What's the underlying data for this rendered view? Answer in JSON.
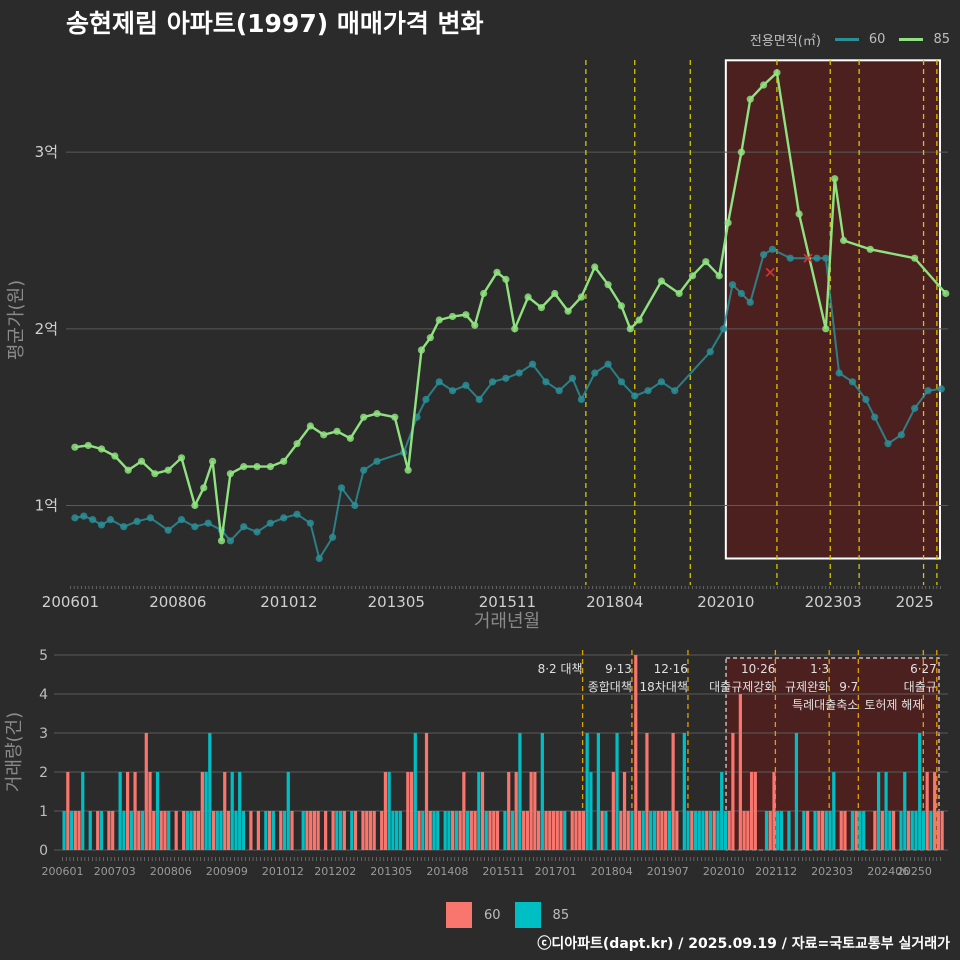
{
  "title": "송현제림 아파트(1997) 매매가격 변화",
  "credit": "ⓒ디아파트(dapt.kr) / 2025.09.19 / 자료=국토교통부 실거래가",
  "legend_top": {
    "title": "전용면적(㎡)",
    "items": [
      {
        "label": "60",
        "color": "#2a8f96"
      },
      {
        "label": "85",
        "color": "#8fe27f"
      }
    ]
  },
  "legend_bottom": {
    "items": [
      {
        "label": "60",
        "color": "#f8766d"
      },
      {
        "label": "85",
        "color": "#00bfc4"
      }
    ]
  },
  "chart_data": [
    {
      "type": "line",
      "xlabel": "거래년월",
      "ylabel": "평균가(원)",
      "x_ticks": [
        "200601",
        "200806",
        "201012",
        "201305",
        "201511",
        "201804",
        "202010",
        "202303",
        "2025"
      ],
      "y_ticks": [
        {
          "value": 1,
          "label": "1억"
        },
        {
          "value": 2,
          "label": "2억"
        },
        {
          "value": 3,
          "label": "3억"
        }
      ],
      "ylim": [
        0.55,
        3.55
      ],
      "xlim": [
        2005.9,
        2025.75
      ],
      "grid": true,
      "highlight": {
        "x_range": [
          2020.75,
          2025.75
        ],
        "y_range": [
          0.7,
          3.52
        ]
      },
      "vlines": [
        2017.6,
        2018.7,
        2019.95,
        2021.9,
        2023.1,
        2023.75,
        2025.2,
        2025.5
      ],
      "series": [
        {
          "name": "60",
          "color": "#2a8f96",
          "points": [
            [
              2006.1,
              0.93
            ],
            [
              2006.3,
              0.94
            ],
            [
              2006.5,
              0.92
            ],
            [
              2006.7,
              0.89
            ],
            [
              2006.9,
              0.92
            ],
            [
              2007.2,
              0.88
            ],
            [
              2007.5,
              0.91
            ],
            [
              2007.8,
              0.93
            ],
            [
              2008.2,
              0.86
            ],
            [
              2008.5,
              0.92
            ],
            [
              2008.8,
              0.88
            ],
            [
              2009.1,
              0.9
            ],
            [
              2009.4,
              0.86
            ],
            [
              2009.6,
              0.8
            ],
            [
              2009.9,
              0.88
            ],
            [
              2010.2,
              0.85
            ],
            [
              2010.5,
              0.9
            ],
            [
              2010.8,
              0.93
            ],
            [
              2011.1,
              0.95
            ],
            [
              2011.4,
              0.9
            ],
            [
              2011.6,
              0.7
            ],
            [
              2011.9,
              0.82
            ],
            [
              2012.1,
              1.1
            ],
            [
              2012.4,
              1.0
            ],
            [
              2012.6,
              1.2
            ],
            [
              2012.9,
              1.25
            ],
            [
              2013.5,
              1.3
            ],
            [
              2013.8,
              1.5
            ],
            [
              2014.0,
              1.6
            ],
            [
              2014.3,
              1.7
            ],
            [
              2014.6,
              1.65
            ],
            [
              2014.9,
              1.68
            ],
            [
              2015.2,
              1.6
            ],
            [
              2015.5,
              1.7
            ],
            [
              2015.8,
              1.72
            ],
            [
              2016.1,
              1.75
            ],
            [
              2016.4,
              1.8
            ],
            [
              2016.7,
              1.7
            ],
            [
              2017.0,
              1.65
            ],
            [
              2017.3,
              1.72
            ],
            [
              2017.5,
              1.6
            ],
            [
              2017.8,
              1.75
            ],
            [
              2018.1,
              1.8
            ],
            [
              2018.4,
              1.7
            ],
            [
              2018.7,
              1.62
            ],
            [
              2019.0,
              1.65
            ],
            [
              2019.3,
              1.7
            ],
            [
              2019.6,
              1.65
            ],
            [
              2020.4,
              1.87
            ],
            [
              2020.7,
              2.0
            ],
            [
              2020.9,
              2.25
            ],
            [
              2021.1,
              2.2
            ],
            [
              2021.3,
              2.15
            ],
            [
              2021.6,
              2.42
            ],
            [
              2021.8,
              2.45
            ],
            [
              2022.2,
              2.4
            ],
            [
              2022.8,
              2.4
            ],
            [
              2023.0,
              2.4
            ],
            [
              2023.3,
              1.75
            ],
            [
              2023.6,
              1.7
            ],
            [
              2023.9,
              1.6
            ],
            [
              2024.1,
              1.5
            ],
            [
              2024.4,
              1.35
            ],
            [
              2024.7,
              1.4
            ],
            [
              2025.0,
              1.55
            ],
            [
              2025.3,
              1.65
            ],
            [
              2025.6,
              1.66
            ]
          ]
        },
        {
          "name": "85",
          "color": "#8fe27f",
          "points": [
            [
              2006.1,
              1.33
            ],
            [
              2006.4,
              1.34
            ],
            [
              2006.7,
              1.32
            ],
            [
              2007.0,
              1.28
            ],
            [
              2007.3,
              1.2
            ],
            [
              2007.6,
              1.25
            ],
            [
              2007.9,
              1.18
            ],
            [
              2008.2,
              1.2
            ],
            [
              2008.5,
              1.27
            ],
            [
              2008.8,
              1.0
            ],
            [
              2009.0,
              1.1
            ],
            [
              2009.2,
              1.25
            ],
            [
              2009.4,
              0.8
            ],
            [
              2009.6,
              1.18
            ],
            [
              2009.9,
              1.22
            ],
            [
              2010.2,
              1.22
            ],
            [
              2010.5,
              1.22
            ],
            [
              2010.8,
              1.25
            ],
            [
              2011.1,
              1.35
            ],
            [
              2011.4,
              1.45
            ],
            [
              2011.7,
              1.4
            ],
            [
              2012.0,
              1.42
            ],
            [
              2012.3,
              1.38
            ],
            [
              2012.6,
              1.5
            ],
            [
              2012.9,
              1.52
            ],
            [
              2013.3,
              1.5
            ],
            [
              2013.6,
              1.2
            ],
            [
              2013.9,
              1.88
            ],
            [
              2014.1,
              1.95
            ],
            [
              2014.3,
              2.05
            ],
            [
              2014.6,
              2.07
            ],
            [
              2014.9,
              2.08
            ],
            [
              2015.1,
              2.02
            ],
            [
              2015.3,
              2.2
            ],
            [
              2015.6,
              2.32
            ],
            [
              2015.8,
              2.28
            ],
            [
              2016.0,
              2.0
            ],
            [
              2016.3,
              2.18
            ],
            [
              2016.6,
              2.12
            ],
            [
              2016.9,
              2.2
            ],
            [
              2017.2,
              2.1
            ],
            [
              2017.5,
              2.18
            ],
            [
              2017.8,
              2.35
            ],
            [
              2018.1,
              2.25
            ],
            [
              2018.4,
              2.13
            ],
            [
              2018.6,
              2.0
            ],
            [
              2018.8,
              2.05
            ],
            [
              2019.3,
              2.27
            ],
            [
              2019.7,
              2.2
            ],
            [
              2020.0,
              2.3
            ],
            [
              2020.3,
              2.38
            ],
            [
              2020.6,
              2.3
            ],
            [
              2020.8,
              2.6
            ],
            [
              2021.1,
              3.0
            ],
            [
              2021.3,
              3.3
            ],
            [
              2021.6,
              3.38
            ],
            [
              2021.9,
              3.45
            ],
            [
              2022.4,
              2.65
            ],
            [
              2023.0,
              2.0
            ],
            [
              2023.2,
              2.85
            ],
            [
              2023.4,
              2.5
            ],
            [
              2024.0,
              2.45
            ],
            [
              2025.0,
              2.4
            ],
            [
              2025.7,
              2.2
            ]
          ]
        }
      ],
      "markers": [
        {
          "x": 2021.75,
          "y": 2.32,
          "color": "#e03030"
        },
        {
          "x": 2022.6,
          "y": 2.4,
          "color": "#e03030"
        }
      ]
    },
    {
      "type": "bar",
      "ylabel": "거래량(건)",
      "x_ticks": [
        "200601",
        "200703",
        "200806",
        "200909",
        "201012",
        "201202",
        "201305",
        "201408",
        "201511",
        "201701",
        "201804",
        "201907",
        "202010",
        "202112",
        "202303",
        "202406",
        "20250"
      ],
      "y_ticks": [
        0,
        1,
        2,
        3,
        4,
        5
      ],
      "ylim": [
        0,
        5
      ],
      "grid": true,
      "highlight": {
        "x_range": [
          2020.8,
          2025.75
        ]
      },
      "vlines": [
        2017.6,
        2018.7,
        2019.95,
        2021.9,
        2023.1,
        2023.75,
        2025.2,
        2025.5
      ],
      "series": [
        {
          "name": "60",
          "color": "#f8766d"
        },
        {
          "name": "85",
          "color": "#00bfc4"
        }
      ],
      "annotations": [
        {
          "x": 2017.6,
          "lines": [
            "8·2 대책"
          ]
        },
        {
          "x": 2018.7,
          "lines": [
            "9·13",
            "종합대책"
          ]
        },
        {
          "x": 2019.95,
          "lines": [
            "12·16",
            "18차대책"
          ]
        },
        {
          "x": 2021.9,
          "lines": [
            "10·26",
            "대출규제강화"
          ]
        },
        {
          "x": 2023.1,
          "lines": [
            "1·3",
            "규제완화"
          ]
        },
        {
          "x": 2023.75,
          "lines": [
            "",
            "9·7",
            "특례대출축소"
          ]
        },
        {
          "x": 2025.2,
          "lines": [
            "",
            "",
            "토허제 해제"
          ]
        },
        {
          "x": 2025.5,
          "lines": [
            "6·27",
            "대출규"
          ]
        }
      ]
    }
  ]
}
